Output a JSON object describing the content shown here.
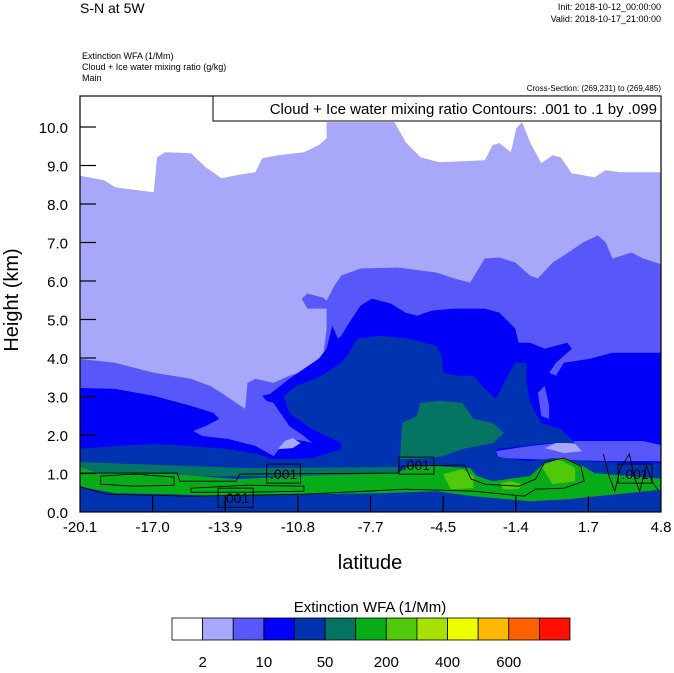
{
  "header": {
    "title": "S-N at 5W",
    "init": "Init: 2018-10-12_00:00:00",
    "valid": "Valid: 2018-10-17_21:00:00",
    "field_lines": [
      "Extinction WFA   (1/Mm)",
      "Cloud + Ice water mixing ratio    (g/kg)",
      "Main"
    ],
    "cross_section": "Cross-Section: (269,231) to (269,485)"
  },
  "chart_data": {
    "type": "contour",
    "title": "",
    "xlabel": "latitude",
    "ylabel": "Height (km)",
    "x_ticks": [
      "-20.1",
      "-17.0",
      "-13.9",
      "-10.8",
      "-7.7",
      "-4.5",
      "-1.4",
      "1.7",
      "4.8"
    ],
    "xlim": [
      -20.1,
      4.8
    ],
    "y_ticks": [
      "0.0",
      "1.0",
      "2.0",
      "3.0",
      "4.0",
      "5.0",
      "6.0",
      "7.0",
      "8.0",
      "9.0",
      "10.0"
    ],
    "ylim": [
      0,
      10.8
    ],
    "filled_field": "Extinction WFA (1/Mm)",
    "colors": [
      "#ffffff",
      "#a8a8fa",
      "#5858fa",
      "#0000f8",
      "#0033b0",
      "#067462",
      "#06ad18",
      "#52c80a",
      "#a8e000",
      "#f0ff00",
      "#ffb800",
      "#ff6000",
      "#ff1000"
    ],
    "contour_field": "Cloud + Ice water mixing ratio (g/kg)",
    "contour_legend": "Cloud + Ice water mixing ratio Contours: .001 to .1 by .099",
    "contour_labels": [
      ".001",
      ".001",
      ".001",
      ".001"
    ],
    "colorbar": {
      "title": "Extinction WFA  (1/Mm)",
      "labels": [
        "2",
        "10",
        "50",
        "200",
        "400",
        "600"
      ]
    }
  }
}
